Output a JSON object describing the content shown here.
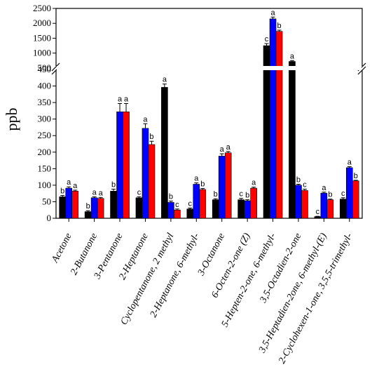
{
  "chart_data": {
    "type": "bar",
    "ylabel": "ppb",
    "y_axis_break": {
      "lower_range": [
        0,
        450
      ],
      "upper_range": [
        450,
        2500
      ]
    },
    "y_ticks_lower": [
      0,
      50,
      100,
      150,
      200,
      250,
      300,
      350,
      400,
      450
    ],
    "y_ticks_upper": [
      500,
      1000,
      1500,
      2000,
      2500
    ],
    "categories": [
      "Acetone",
      "2-Butanone",
      "3-Pentanone",
      "2-Heptanone",
      "Cyclopentanone, 2 methyl",
      "2-Heptanone, 6-methyl-",
      "3-Octanone",
      "6-Octen-2-one (Z)",
      "5-Hepten-2-one, 6-methyl-",
      "3,5-Octadien-2-one",
      "3,5-Heptadien-2one, 6-methyl-(E)",
      "2-Cyclohexen-1-one, 3,5,5-trimethyl-"
    ],
    "series": [
      {
        "color": "#000000",
        "values": [
          65,
          20,
          82,
          62,
          396,
          28,
          56,
          56,
          1250,
          720,
          5,
          58
        ],
        "errors": [
          4,
          3,
          6,
          3,
          10,
          3,
          3,
          4,
          70,
          30,
          1,
          4
        ],
        "letters": [
          "b",
          "b",
          "b",
          "c",
          "a",
          "c",
          "b",
          "c",
          "c",
          "a",
          "c",
          "c"
        ]
      },
      {
        "color": "#0000ff",
        "values": [
          91,
          62,
          322,
          272,
          48,
          103,
          188,
          53,
          2150,
          100,
          76,
          153
        ],
        "errors": [
          4,
          3,
          25,
          14,
          4,
          4,
          7,
          3,
          60,
          3,
          3,
          3
        ],
        "letters": [
          "a",
          "a",
          "a",
          "a",
          "b",
          "a",
          "a",
          "b",
          "a",
          "b",
          "a",
          "a"
        ]
      },
      {
        "color": "#ff0000",
        "values": [
          82,
          60,
          322,
          223,
          25,
          87,
          198,
          91,
          1730,
          84,
          56,
          113
        ],
        "errors": [
          3,
          3,
          25,
          10,
          3,
          3,
          4,
          3,
          40,
          4,
          2,
          2
        ],
        "letters": [
          "a",
          "a",
          "a",
          "b",
          "c",
          "b",
          "a",
          "a",
          "b",
          "c",
          "b",
          "b"
        ]
      }
    ]
  }
}
